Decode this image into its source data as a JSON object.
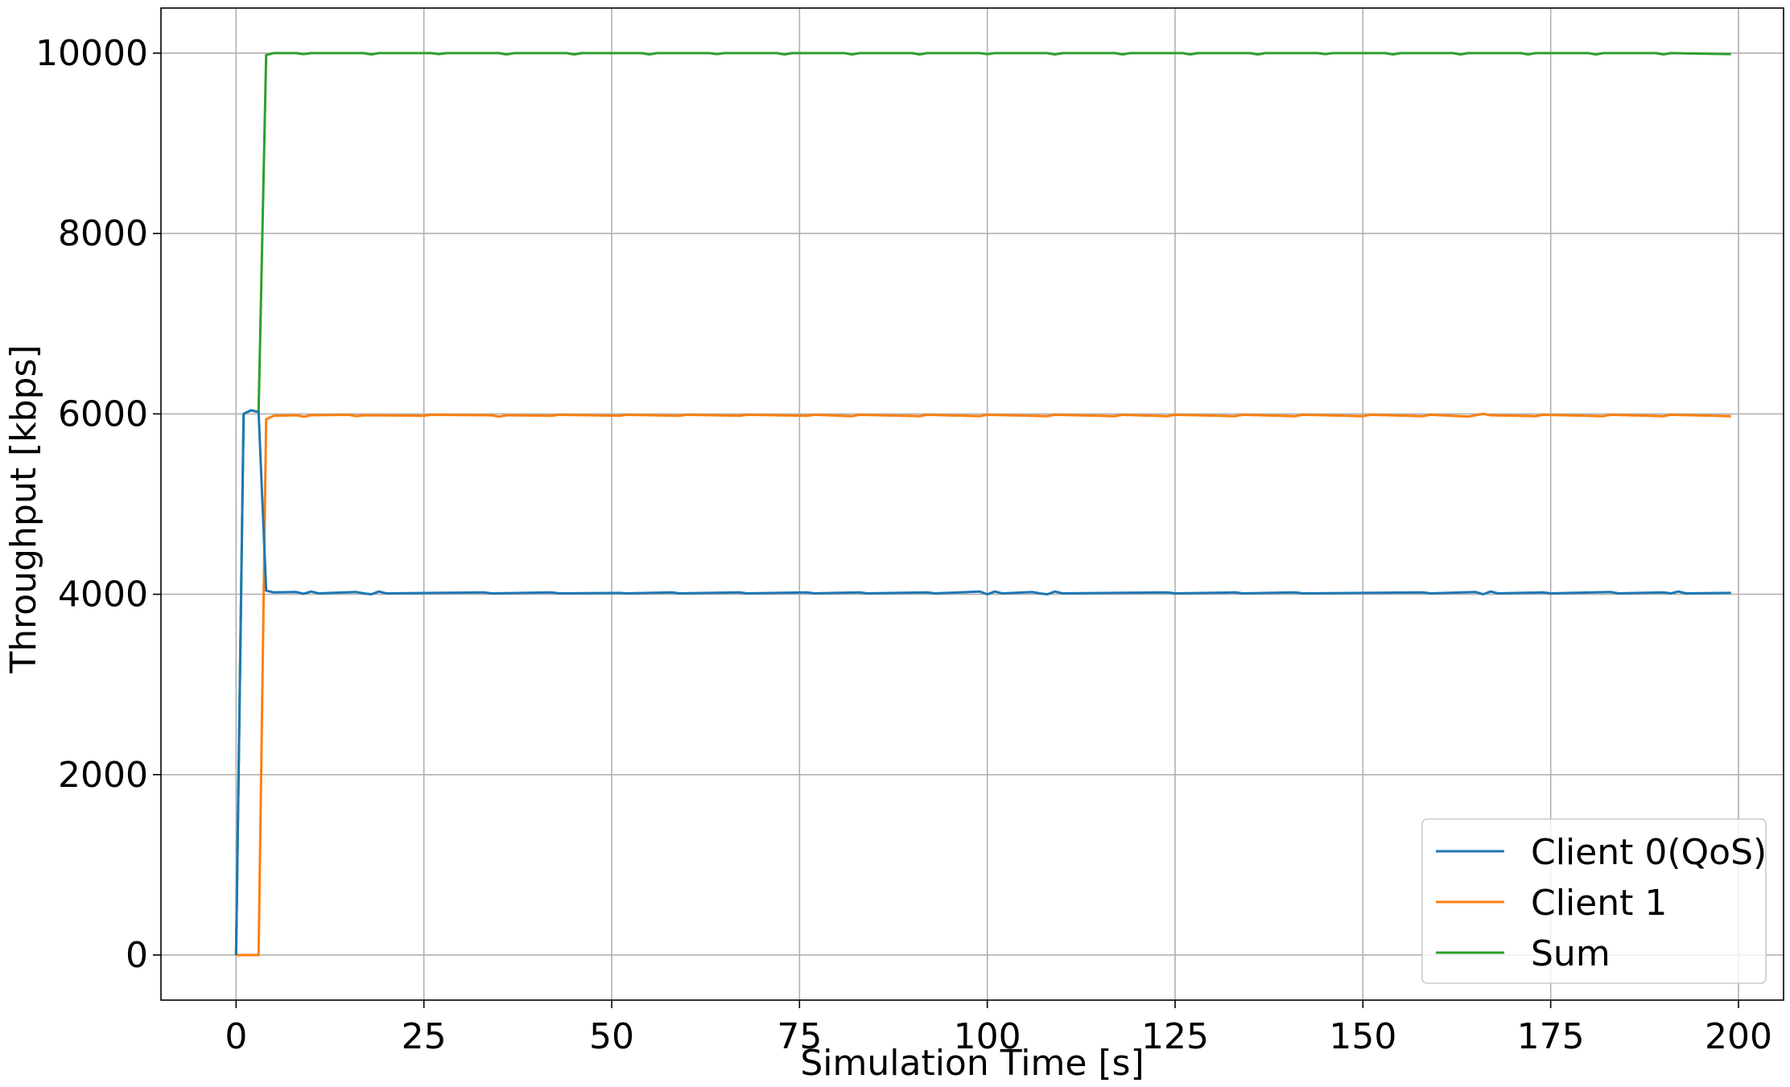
{
  "chart_data": {
    "type": "line",
    "title": "",
    "xlabel": "Simulation Time [s]",
    "ylabel": "Throughput [kbps]",
    "xlim": [
      -10,
      206
    ],
    "ylim": [
      -500,
      10500
    ],
    "xticks": [
      0,
      25,
      50,
      75,
      100,
      125,
      150,
      175,
      200
    ],
    "yticks": [
      0,
      2000,
      4000,
      6000,
      8000,
      10000
    ],
    "grid": true,
    "legend_position": "lower-right",
    "series": [
      {
        "name": "Client 0(QoS)",
        "color": "#1f77b4",
        "points": [
          [
            0,
            0
          ],
          [
            1,
            6000
          ],
          [
            2,
            6040
          ],
          [
            3,
            6020
          ],
          [
            4,
            4040
          ],
          [
            5,
            4020
          ],
          [
            8,
            4025
          ],
          [
            9,
            4005
          ],
          [
            10,
            4030
          ],
          [
            11,
            4010
          ],
          [
            16,
            4025
          ],
          [
            17,
            4010
          ],
          [
            18,
            4000
          ],
          [
            19,
            4030
          ],
          [
            20,
            4010
          ],
          [
            33,
            4020
          ],
          [
            34,
            4010
          ],
          [
            42,
            4020
          ],
          [
            43,
            4010
          ],
          [
            51,
            4015
          ],
          [
            52,
            4010
          ],
          [
            58,
            4020
          ],
          [
            59,
            4010
          ],
          [
            67,
            4020
          ],
          [
            68,
            4010
          ],
          [
            76,
            4020
          ],
          [
            77,
            4010
          ],
          [
            83,
            4020
          ],
          [
            84,
            4010
          ],
          [
            92,
            4020
          ],
          [
            93,
            4010
          ],
          [
            99,
            4030
          ],
          [
            100,
            4000
          ],
          [
            101,
            4030
          ],
          [
            102,
            4010
          ],
          [
            106,
            4025
          ],
          [
            107,
            4010
          ],
          [
            108,
            4000
          ],
          [
            109,
            4030
          ],
          [
            110,
            4010
          ],
          [
            124,
            4020
          ],
          [
            125,
            4010
          ],
          [
            133,
            4020
          ],
          [
            134,
            4010
          ],
          [
            141,
            4020
          ],
          [
            142,
            4010
          ],
          [
            158,
            4020
          ],
          [
            159,
            4010
          ],
          [
            165,
            4025
          ],
          [
            166,
            4000
          ],
          [
            167,
            4030
          ],
          [
            168,
            4010
          ],
          [
            174,
            4020
          ],
          [
            175,
            4010
          ],
          [
            183,
            4025
          ],
          [
            184,
            4010
          ],
          [
            190,
            4020
          ],
          [
            191,
            4010
          ],
          [
            192,
            4030
          ],
          [
            193,
            4010
          ],
          [
            199,
            4015
          ]
        ]
      },
      {
        "name": "Client 1",
        "color": "#ff7f0e",
        "points": [
          [
            0,
            0
          ],
          [
            1,
            0
          ],
          [
            2,
            0
          ],
          [
            3,
            0
          ],
          [
            4,
            5940
          ],
          [
            5,
            5980
          ],
          [
            8,
            5985
          ],
          [
            9,
            5970
          ],
          [
            10,
            5985
          ],
          [
            15,
            5990
          ],
          [
            16,
            5975
          ],
          [
            17,
            5985
          ],
          [
            25,
            5980
          ],
          [
            26,
            5990
          ],
          [
            34,
            5985
          ],
          [
            35,
            5970
          ],
          [
            36,
            5985
          ],
          [
            42,
            5980
          ],
          [
            43,
            5990
          ],
          [
            51,
            5980
          ],
          [
            52,
            5990
          ],
          [
            59,
            5980
          ],
          [
            60,
            5990
          ],
          [
            67,
            5980
          ],
          [
            68,
            5990
          ],
          [
            76,
            5980
          ],
          [
            77,
            5990
          ],
          [
            82,
            5975
          ],
          [
            83,
            5990
          ],
          [
            91,
            5975
          ],
          [
            92,
            5990
          ],
          [
            99,
            5975
          ],
          [
            100,
            5990
          ],
          [
            108,
            5975
          ],
          [
            109,
            5990
          ],
          [
            117,
            5975
          ],
          [
            118,
            5990
          ],
          [
            124,
            5975
          ],
          [
            125,
            5990
          ],
          [
            133,
            5975
          ],
          [
            134,
            5990
          ],
          [
            141,
            5975
          ],
          [
            142,
            5990
          ],
          [
            150,
            5975
          ],
          [
            151,
            5990
          ],
          [
            158,
            5975
          ],
          [
            159,
            5990
          ],
          [
            164,
            5970
          ],
          [
            165,
            5985
          ],
          [
            166,
            6000
          ],
          [
            167,
            5985
          ],
          [
            173,
            5975
          ],
          [
            174,
            5990
          ],
          [
            182,
            5975
          ],
          [
            183,
            5990
          ],
          [
            190,
            5975
          ],
          [
            191,
            5990
          ],
          [
            199,
            5975
          ]
        ]
      },
      {
        "name": "Sum",
        "color": "#2ca02c",
        "points": [
          [
            0,
            0
          ],
          [
            1,
            6000
          ],
          [
            2,
            6040
          ],
          [
            3,
            6020
          ],
          [
            4,
            9980
          ],
          [
            5,
            10000
          ],
          [
            8,
            10000
          ],
          [
            9,
            9990
          ],
          [
            10,
            10000
          ],
          [
            17,
            10000
          ],
          [
            18,
            9985
          ],
          [
            19,
            10000
          ],
          [
            26,
            10000
          ],
          [
            27,
            9990
          ],
          [
            28,
            10000
          ],
          [
            35,
            10000
          ],
          [
            36,
            9985
          ],
          [
            37,
            10000
          ],
          [
            44,
            10000
          ],
          [
            45,
            9985
          ],
          [
            46,
            10000
          ],
          [
            54,
            10000
          ],
          [
            55,
            9985
          ],
          [
            56,
            10000
          ],
          [
            63,
            10000
          ],
          [
            64,
            9990
          ],
          [
            65,
            10000
          ],
          [
            72,
            10000
          ],
          [
            73,
            9985
          ],
          [
            74,
            10000
          ],
          [
            81,
            10000
          ],
          [
            82,
            9985
          ],
          [
            83,
            10000
          ],
          [
            90,
            10000
          ],
          [
            91,
            9985
          ],
          [
            92,
            10000
          ],
          [
            99,
            10000
          ],
          [
            100,
            9990
          ],
          [
            101,
            10000
          ],
          [
            108,
            10000
          ],
          [
            109,
            9985
          ],
          [
            110,
            10000
          ],
          [
            117,
            10000
          ],
          [
            118,
            9985
          ],
          [
            119,
            10000
          ],
          [
            126,
            10000
          ],
          [
            127,
            9985
          ],
          [
            128,
            10000
          ],
          [
            135,
            10000
          ],
          [
            136,
            9985
          ],
          [
            137,
            10000
          ],
          [
            144,
            10000
          ],
          [
            145,
            9990
          ],
          [
            146,
            10000
          ],
          [
            153,
            10000
          ],
          [
            154,
            9985
          ],
          [
            155,
            10000
          ],
          [
            162,
            10000
          ],
          [
            163,
            9985
          ],
          [
            164,
            10000
          ],
          [
            171,
            10000
          ],
          [
            172,
            9985
          ],
          [
            173,
            10000
          ],
          [
            180,
            10000
          ],
          [
            181,
            9985
          ],
          [
            182,
            10000
          ],
          [
            189,
            10000
          ],
          [
            190,
            9985
          ],
          [
            191,
            10000
          ],
          [
            199,
            9990
          ]
        ]
      }
    ]
  }
}
